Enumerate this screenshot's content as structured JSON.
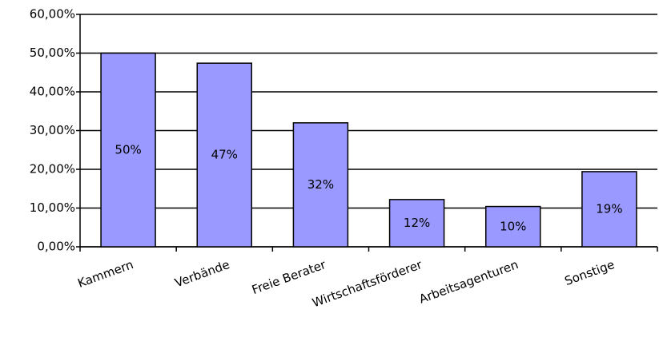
{
  "chart_data": {
    "type": "bar",
    "categories": [
      "Kammern",
      "Verbände",
      "Freie Berater",
      "Wirtschaftsförderer",
      "Arbeitsagenturen",
      "Sonstige"
    ],
    "values": [
      50,
      47.4,
      32,
      12.2,
      10.4,
      19.4
    ],
    "value_labels": [
      "50%",
      "47%",
      "32%",
      "12%",
      "10%",
      "19%"
    ],
    "color": "#9999ff",
    "ylim": [
      0,
      60
    ],
    "yticks": [
      {
        "value": 0,
        "label": "0,00%"
      },
      {
        "value": 10,
        "label": "10,00%"
      },
      {
        "value": 20,
        "label": "20,00%"
      },
      {
        "value": 30,
        "label": "30,00%"
      },
      {
        "value": 40,
        "label": "40,00%"
      },
      {
        "value": 50,
        "label": "50,00%"
      },
      {
        "value": 60,
        "label": "60,00%"
      }
    ],
    "grid": true
  }
}
